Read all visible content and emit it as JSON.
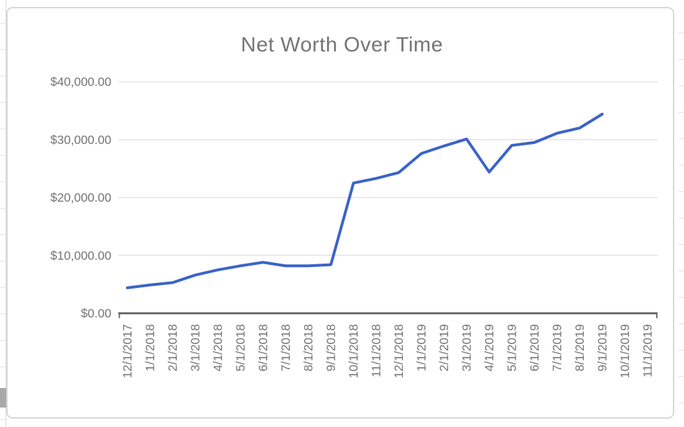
{
  "chart_data": {
    "type": "line",
    "title": "Net Worth Over Time",
    "xlabel": "",
    "ylabel": "",
    "x_labels": [
      "12/1/2017",
      "1/1/2018",
      "2/1/2018",
      "3/1/2018",
      "4/1/2018",
      "5/1/2018",
      "6/1/2018",
      "7/1/2018",
      "8/1/2018",
      "9/1/2018",
      "10/1/2018",
      "11/1/2018",
      "12/1/2018",
      "1/1/2019",
      "2/1/2019",
      "3/1/2019",
      "4/1/2019",
      "5/1/2019",
      "6/1/2019",
      "7/1/2019",
      "8/1/2019",
      "9/1/2019",
      "10/1/2019",
      "11/1/2019"
    ],
    "series": [
      {
        "name": "Net Worth",
        "color": "#3b63c8",
        "values": [
          4400,
          4900,
          5300,
          6600,
          7500,
          8200,
          8800,
          8200,
          8200,
          8400,
          22500,
          23300,
          24300,
          27600,
          28900,
          30100,
          24400,
          29000,
          29500,
          31100,
          32000,
          34400,
          null,
          null
        ]
      }
    ],
    "y_tick_values": [
      0,
      10000,
      20000,
      30000,
      40000
    ],
    "y_tick_labels": [
      "$0.00",
      "$10,000.00",
      "$20,000.00",
      "$30,000.00",
      "$40,000.00"
    ],
    "ylim": [
      0,
      40000
    ],
    "grid": true,
    "legend": "none",
    "colors": {
      "title": "#757575",
      "axis_label": "#757575",
      "gridline": "#e3e3e3",
      "axis_line": "#6e6e6e",
      "chart_border": "#d8d8d8",
      "sheet_gridline": "#e2e2e2"
    }
  }
}
